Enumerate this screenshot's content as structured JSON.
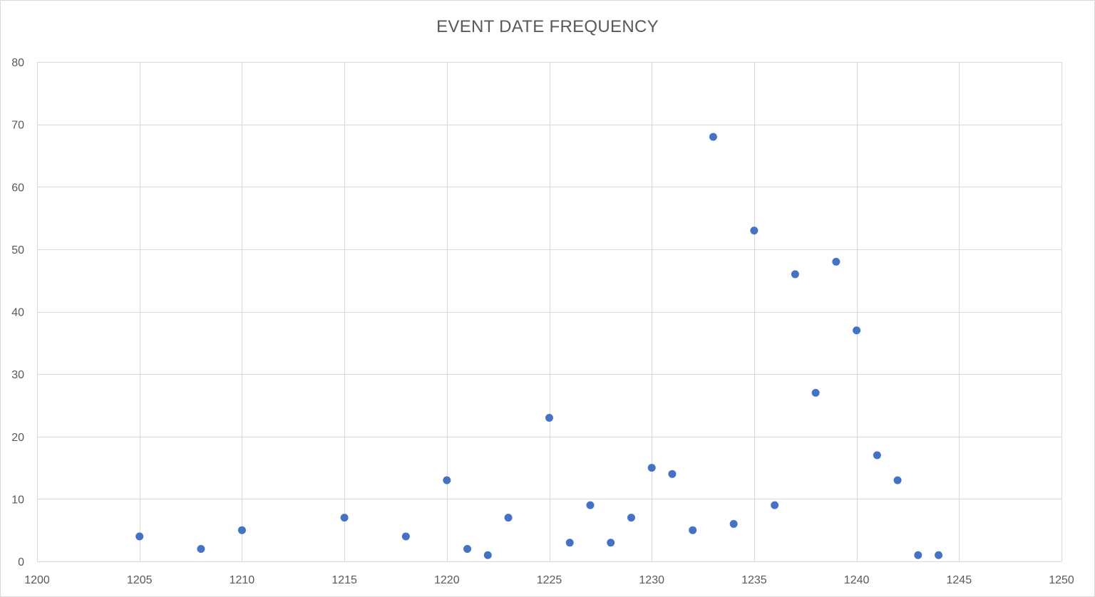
{
  "chart_data": {
    "type": "scatter",
    "title": "EVENT DATE FREQUENCY",
    "xlabel": "",
    "ylabel": "",
    "xlim": [
      1200,
      1250
    ],
    "ylim": [
      0,
      80
    ],
    "xticks": [
      1200,
      1205,
      1210,
      1215,
      1220,
      1225,
      1230,
      1235,
      1240,
      1245,
      1250
    ],
    "yticks": [
      0,
      10,
      20,
      30,
      40,
      50,
      60,
      70,
      80
    ],
    "grid": true,
    "legend": "none",
    "marker_color": "#4472C4",
    "gridline_color": "#d9d9d9",
    "points": [
      {
        "x": 1205,
        "y": 4
      },
      {
        "x": 1208,
        "y": 2
      },
      {
        "x": 1210,
        "y": 5
      },
      {
        "x": 1215,
        "y": 7
      },
      {
        "x": 1218,
        "y": 4
      },
      {
        "x": 1220,
        "y": 13
      },
      {
        "x": 1221,
        "y": 2
      },
      {
        "x": 1222,
        "y": 1
      },
      {
        "x": 1223,
        "y": 7
      },
      {
        "x": 1225,
        "y": 23
      },
      {
        "x": 1226,
        "y": 3
      },
      {
        "x": 1227,
        "y": 9
      },
      {
        "x": 1228,
        "y": 3
      },
      {
        "x": 1229,
        "y": 7
      },
      {
        "x": 1230,
        "y": 15
      },
      {
        "x": 1231,
        "y": 14
      },
      {
        "x": 1232,
        "y": 5
      },
      {
        "x": 1233,
        "y": 68
      },
      {
        "x": 1234,
        "y": 6
      },
      {
        "x": 1235,
        "y": 53
      },
      {
        "x": 1236,
        "y": 9
      },
      {
        "x": 1237,
        "y": 46
      },
      {
        "x": 1238,
        "y": 27
      },
      {
        "x": 1239,
        "y": 48
      },
      {
        "x": 1240,
        "y": 37
      },
      {
        "x": 1241,
        "y": 17
      },
      {
        "x": 1242,
        "y": 13
      },
      {
        "x": 1243,
        "y": 1
      },
      {
        "x": 1244,
        "y": 1
      }
    ]
  }
}
